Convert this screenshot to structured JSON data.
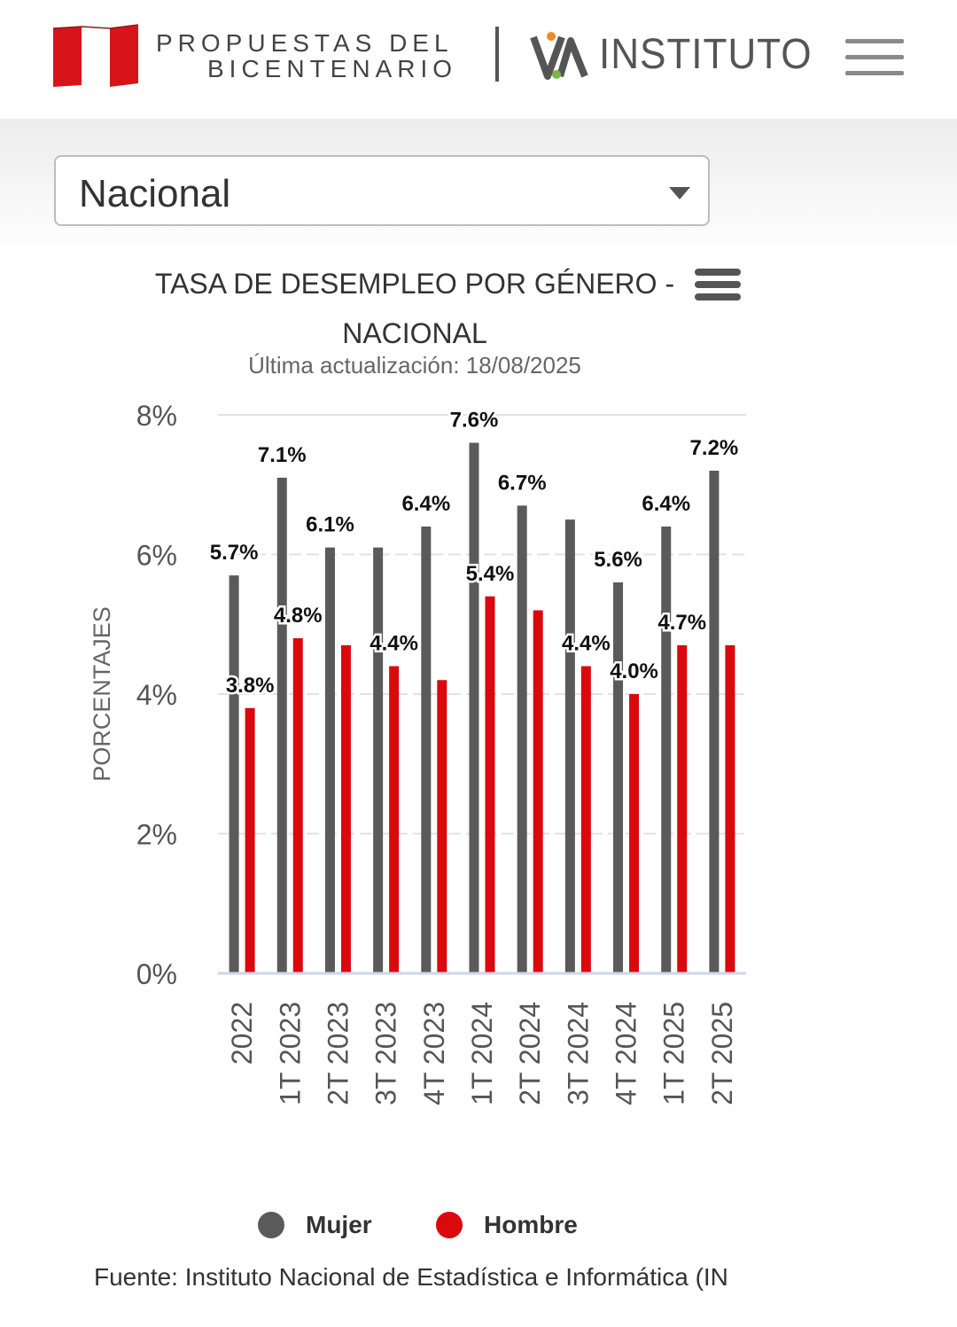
{
  "header": {
    "brand_line1": "PROPUESTAS DEL",
    "brand_line2": "BICENTENARIO",
    "institute": "INSTITUTO",
    "flag_color": "#d7141a",
    "menu_icon": "hamburger-icon"
  },
  "filter": {
    "selected": "Nacional"
  },
  "chart_header": {
    "title_line1": "TASA DE DESEMPLEO POR GÉNERO -",
    "title_line2": "NACIONAL",
    "subtitle": "Última actualización: 18/08/2025",
    "menu_icon": "chart-menu-icon"
  },
  "chart_data": {
    "type": "bar",
    "title": "TASA DE DESEMPLEO POR GÉNERO - NACIONAL",
    "subtitle": "Última actualización: 18/08/2025",
    "xlabel": "",
    "ylabel": "PORCENTAJES",
    "ylim": [
      0,
      8
    ],
    "yticks": [
      "0%",
      "2%",
      "4%",
      "6%",
      "8%"
    ],
    "grid": true,
    "legend_position": "bottom",
    "categories": [
      "2022",
      "1T 2023",
      "2T 2023",
      "3T 2023",
      "4T 2023",
      "1T 2024",
      "2T 2024",
      "3T 2024",
      "4T 2024",
      "1T 2025",
      "2T 2025"
    ],
    "series": [
      {
        "name": "Mujer",
        "color": "#5a5a5a",
        "values": [
          5.7,
          7.1,
          6.1,
          6.1,
          6.4,
          7.6,
          6.7,
          6.5,
          5.6,
          6.4,
          7.2
        ],
        "labels": [
          "5.7%",
          "7.1%",
          "6.1%",
          "",
          "6.4%",
          "7.6%",
          "6.7%",
          "",
          "5.6%",
          "6.4%",
          "7.2%"
        ]
      },
      {
        "name": "Hombre",
        "color": "#d9090e",
        "values": [
          3.8,
          4.8,
          4.7,
          4.4,
          4.2,
          5.4,
          5.2,
          4.4,
          4.0,
          4.7,
          4.7
        ],
        "labels": [
          "3.8%",
          "4.8%",
          "",
          "4.4%",
          "",
          "5.4%",
          "",
          "4.4%",
          "4.0%",
          "4.7%",
          ""
        ]
      }
    ]
  },
  "source": "Fuente: Instituto Nacional de Estadística e Informática (IN"
}
